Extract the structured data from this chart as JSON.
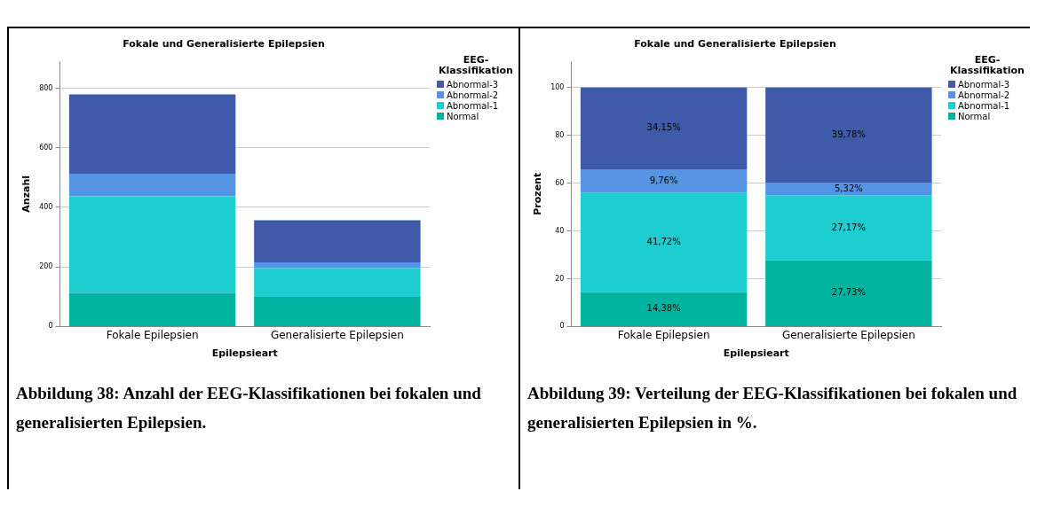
{
  "chart_data": [
    {
      "type": "bar",
      "title": "Fokale und Generalisierte Epilepsien",
      "xlabel": "Epilepsieart",
      "ylabel": "Anzahl",
      "legend_title": "EEG-Klassifikation",
      "categories": [
        "Fokale Epilepsien",
        "Generalisierte Epilepsien"
      ],
      "stacked": true,
      "ylim": [
        0,
        890
      ],
      "yticks": [
        0,
        200,
        400,
        600,
        800
      ],
      "grid": "y",
      "legend": "top right",
      "series": [
        {
          "name": "Normal",
          "color": "#00b2a0",
          "values": [
            112,
            99
          ]
        },
        {
          "name": "Abnormal-1",
          "color": "#1dcdcf",
          "values": [
            325,
            97
          ]
        },
        {
          "name": "Abnormal-2",
          "color": "#5594e2",
          "values": [
            76,
            19
          ]
        },
        {
          "name": "Abnormal-3",
          "color": "#3f5aa8",
          "values": [
            266,
            142
          ]
        }
      ],
      "annotations": [
        "Abbildung 38: Anzahl der EEG-Klassifikationen bei fokalen und generalisierten Epilepsien."
      ]
    },
    {
      "type": "bar",
      "title": "Fokale und Generalisierte Epilepsien",
      "xlabel": "Epilepsieart",
      "ylabel": "Prozent",
      "legend_title": "EEG-Klassifikation",
      "categories": [
        "Fokale Epilepsien",
        "Generalisierte Epilepsien"
      ],
      "stacked": true,
      "ylim": [
        0,
        111
      ],
      "yticks": [
        0,
        20,
        40,
        60,
        80,
        100
      ],
      "grid": "y",
      "legend": "top right",
      "series": [
        {
          "name": "Normal",
          "color": "#00b2a0",
          "values": [
            14.38,
            27.73
          ],
          "value_labels": [
            "14,38%",
            "27,73%"
          ]
        },
        {
          "name": "Abnormal-1",
          "color": "#1dcdcf",
          "values": [
            41.72,
            27.17
          ],
          "value_labels": [
            "41,72%",
            "27,17%"
          ]
        },
        {
          "name": "Abnormal-2",
          "color": "#5594e2",
          "values": [
            9.76,
            5.32
          ],
          "value_labels": [
            "9,76%",
            "5,32%"
          ]
        },
        {
          "name": "Abnormal-3",
          "color": "#3f5aa8",
          "values": [
            34.15,
            39.78
          ],
          "value_labels": [
            "34,15%",
            "39,78%"
          ]
        }
      ],
      "annotations": [
        "Abbildung 39: Verteilung der EEG-Klassifikationen bei fokalen und generalisierten Epilepsien in %."
      ]
    }
  ]
}
